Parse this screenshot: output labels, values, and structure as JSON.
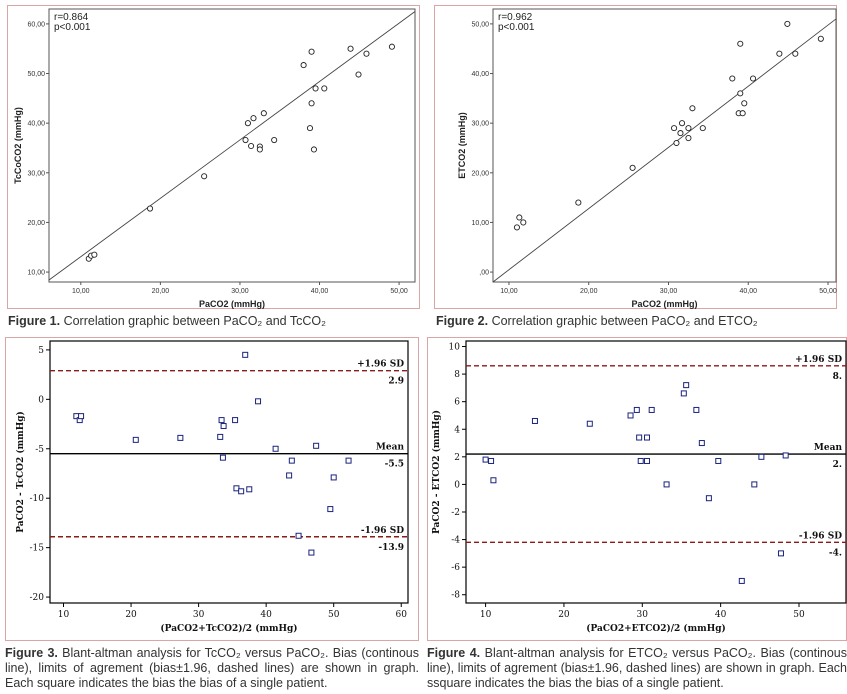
{
  "figures": [
    {
      "caption_bold": "Figure 1.",
      "caption_text": " Correlation graphic between PaCO₂ and TcCO₂"
    },
    {
      "caption_bold": "Figure 2.",
      "caption_text": " Correlation graphic between PaCO₂ and ETCO₂"
    },
    {
      "caption_bold": "Figure 3.",
      "caption_text": " Blant-altman analysis for TcCO₂ versus PaCO₂. Bias (continous line), limits of agrement (bias±1.96, dashed lines) are shown in graph. Each square indicates the bias the bias of a single patient."
    },
    {
      "caption_bold": "Figure 4.",
      "caption_text": " Blant-altman analysis for ETCO₂ versus PaCO₂. Bias (continous line), limits of agrement (bias±1.96, dashed lines) are shown in graph. Each ssquare indicates the bias the bias of a single patient."
    }
  ],
  "chart_data": [
    {
      "type": "scatter",
      "xlabel": "PaCO2 (mmHg)",
      "ylabel": "TcCoCO2 (mmHg)",
      "annotations": [
        "r=0.864",
        "p<0.001"
      ],
      "xlim": [
        6,
        52
      ],
      "ylim": [
        8,
        63
      ],
      "xticks": [
        "10,00",
        "20,00",
        "30,00",
        "40,00",
        "50,00"
      ],
      "xtick_values": [
        10,
        20,
        30,
        40,
        50
      ],
      "yticks": [
        "10,00",
        "20,00",
        "30,00",
        "40,00",
        "50,00",
        "60,00"
      ],
      "ytick_values": [
        10,
        20,
        30,
        40,
        50,
        60
      ],
      "regression_line": [
        [
          6,
          8.4
        ],
        [
          52,
          62.5
        ]
      ],
      "points": [
        [
          11,
          12.7
        ],
        [
          11.3,
          13.3
        ],
        [
          11.7,
          13.5
        ],
        [
          18.7,
          22.8
        ],
        [
          25.5,
          29.3
        ],
        [
          30.7,
          36.6
        ],
        [
          31,
          40
        ],
        [
          31.4,
          35.4
        ],
        [
          31.7,
          41
        ],
        [
          32.5,
          35.3
        ],
        [
          32.5,
          34.7
        ],
        [
          33,
          42
        ],
        [
          34.3,
          36.6
        ],
        [
          38,
          51.7
        ],
        [
          38.8,
          39
        ],
        [
          39,
          44
        ],
        [
          39,
          54.4
        ],
        [
          39.3,
          34.7
        ],
        [
          39.5,
          47
        ],
        [
          40.6,
          47
        ],
        [
          43.9,
          55
        ],
        [
          44.9,
          49.8
        ],
        [
          45.9,
          54
        ],
        [
          49.1,
          55.4
        ]
      ]
    },
    {
      "type": "scatter",
      "xlabel": "PaCO2 (mmHg)",
      "ylabel": "ETCO2 (mmHg)",
      "annotations": [
        "r=0.962",
        "p<0.001"
      ],
      "xlim": [
        8,
        51
      ],
      "ylim": [
        -2,
        53
      ],
      "xticks": [
        "10,00",
        "20,00",
        "30,00",
        "40,00",
        "50,00"
      ],
      "xtick_values": [
        10,
        20,
        30,
        40,
        50
      ],
      "yticks": [
        ",00",
        "10,00",
        "20,00",
        "30,00",
        "40,00",
        "50,00"
      ],
      "ytick_values": [
        0,
        10,
        20,
        30,
        40,
        50
      ],
      "regression_line": [
        [
          8,
          -2
        ],
        [
          51,
          51
        ]
      ],
      "points": [
        [
          11,
          9
        ],
        [
          11.3,
          11
        ],
        [
          11.8,
          10
        ],
        [
          18.7,
          14
        ],
        [
          25.5,
          21
        ],
        [
          30.7,
          29
        ],
        [
          31,
          26
        ],
        [
          31.5,
          28
        ],
        [
          31.7,
          30
        ],
        [
          32.5,
          29
        ],
        [
          32.5,
          27
        ],
        [
          33,
          33
        ],
        [
          34.3,
          29
        ],
        [
          38,
          39
        ],
        [
          38.8,
          32
        ],
        [
          39,
          36
        ],
        [
          39,
          46
        ],
        [
          39.3,
          32
        ],
        [
          39.5,
          34
        ],
        [
          40.6,
          39
        ],
        [
          43.9,
          44
        ],
        [
          44.9,
          50
        ],
        [
          45.9,
          44
        ],
        [
          49.1,
          47
        ]
      ]
    },
    {
      "type": "scatter",
      "xlabel": "(PaCO2+TcCO2)/2 (mmHg)",
      "ylabel": "PaCO2 - TcCO2 (mmHg)",
      "xlim": [
        8,
        61
      ],
      "ylim": [
        -20.6,
        5.9
      ],
      "xticks": [
        10,
        20,
        30,
        40,
        50,
        60
      ],
      "yticks": [
        5,
        0,
        -5,
        -10,
        -15,
        -20
      ],
      "reference_lines": [
        {
          "name": "+1.96 SD",
          "value": 2.9,
          "value_label": "2.9",
          "style": "dashed"
        },
        {
          "name": "Mean",
          "value": -5.5,
          "value_label": "-5.5",
          "style": "solid"
        },
        {
          "name": "-1.96 SD",
          "value": -13.9,
          "value_label": "-13.9",
          "style": "dashed"
        }
      ],
      "points": [
        [
          11.9,
          -1.7
        ],
        [
          12.4,
          -2.1
        ],
        [
          12.6,
          -1.7
        ],
        [
          20.7,
          -4.1
        ],
        [
          27.3,
          -3.9
        ],
        [
          33.2,
          -3.8
        ],
        [
          33.4,
          -2.1
        ],
        [
          33.6,
          -5.9
        ],
        [
          33.7,
          -2.7
        ],
        [
          35.4,
          -2.1
        ],
        [
          35.6,
          -9.0
        ],
        [
          36.3,
          -9.3
        ],
        [
          36.9,
          4.5
        ],
        [
          37.5,
          -9.1
        ],
        [
          38.8,
          -0.2
        ],
        [
          41.4,
          -5.0
        ],
        [
          43.4,
          -7.7
        ],
        [
          43.8,
          -6.2
        ],
        [
          44.8,
          -13.8
        ],
        [
          46.7,
          -15.5
        ],
        [
          47.4,
          -4.7
        ],
        [
          49.5,
          -11.1
        ],
        [
          50.0,
          -7.9
        ],
        [
          52.2,
          -6.2
        ]
      ]
    },
    {
      "type": "scatter",
      "xlabel": "(PaCO2+ETCO2)/2 (mmHg)",
      "ylabel": "PaCO2 - ETCO2 (mmHg)",
      "xlim": [
        7.5,
        56
      ],
      "ylim": [
        -8.6,
        10.4
      ],
      "xticks": [
        10,
        20,
        30,
        40,
        50
      ],
      "yticks": [
        10,
        8,
        6,
        4,
        2,
        0,
        -2,
        -4,
        -6,
        -8
      ],
      "reference_lines": [
        {
          "name": "+1.96 SD",
          "value": 8.6,
          "value_label": "8.",
          "style": "dashed"
        },
        {
          "name": "Mean",
          "value": 2.2,
          "value_label": "2.",
          "style": "solid"
        },
        {
          "name": "-1.96 SD",
          "value": -4.2,
          "value_label": "-4.",
          "style": "dashed"
        }
      ],
      "points": [
        [
          10,
          1.8
        ],
        [
          10.7,
          1.7
        ],
        [
          11,
          0.3
        ],
        [
          16.3,
          4.6
        ],
        [
          23.3,
          4.4
        ],
        [
          28.5,
          5.0
        ],
        [
          29.3,
          5.4
        ],
        [
          29.6,
          3.4
        ],
        [
          29.8,
          1.7
        ],
        [
          30.6,
          1.7
        ],
        [
          30.6,
          3.4
        ],
        [
          31.2,
          5.4
        ],
        [
          33.1,
          0.0
        ],
        [
          35.3,
          6.6
        ],
        [
          35.6,
          7.2
        ],
        [
          36.9,
          5.4
        ],
        [
          37.6,
          3.0
        ],
        [
          38.5,
          -1.0
        ],
        [
          39.7,
          1.7
        ],
        [
          42.7,
          -7.0
        ],
        [
          44.3,
          0.0
        ],
        [
          45.2,
          2.0
        ],
        [
          47.7,
          -5.0
        ],
        [
          48.3,
          2.1
        ]
      ]
    }
  ]
}
